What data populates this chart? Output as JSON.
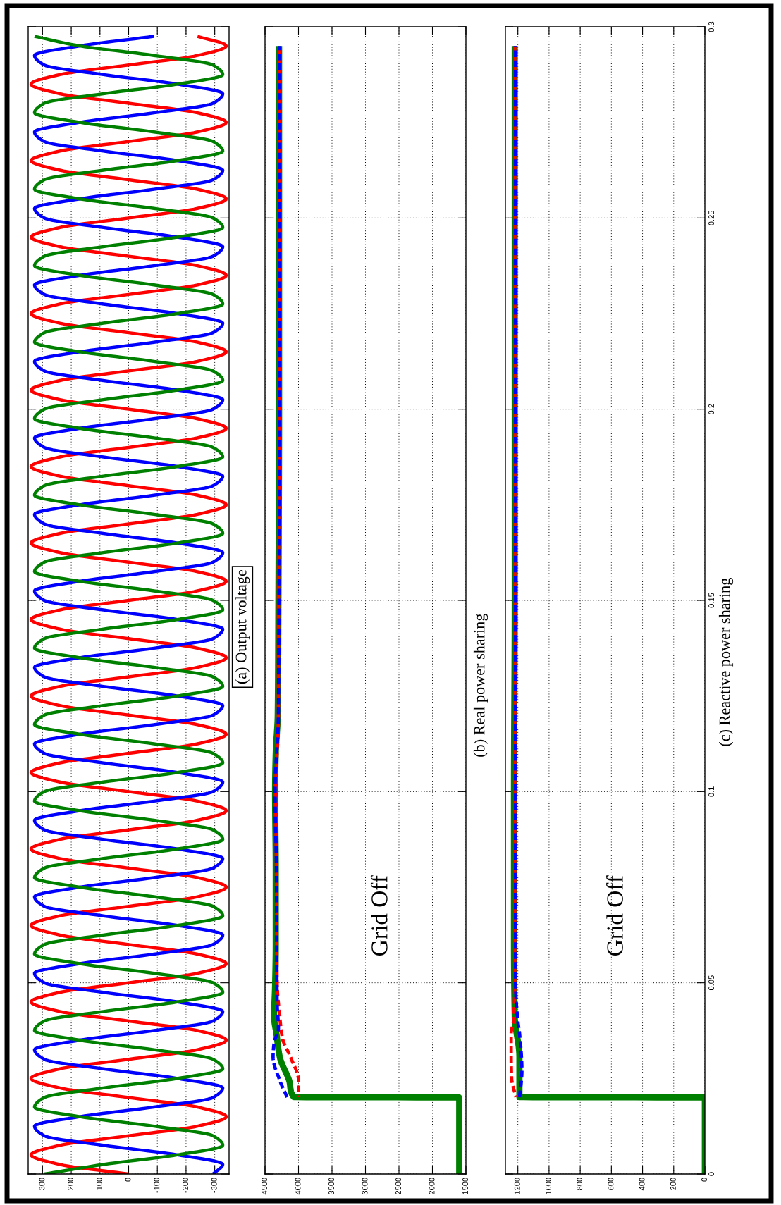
{
  "chart_data": [
    {
      "type": "line",
      "title": "(a) Output voltage",
      "xlim": [
        350,
        -350
      ],
      "xticks": [
        300,
        200,
        100,
        0,
        -100,
        -200,
        -300
      ],
      "ylim": [
        0,
        0.3
      ],
      "yticks": [
        0,
        0.05,
        0.1,
        0.15,
        0.2,
        0.25,
        0.3
      ],
      "grid": true,
      "tick_labels": "x",
      "series": [
        {
          "color": "#ff0000",
          "line_style": "solid",
          "x": [
            0,
            240,
            340,
            240,
            0,
            -240,
            -340,
            -240,
            0,
            240,
            340,
            240,
            0,
            -240,
            -340,
            -240,
            0,
            240,
            340,
            240,
            0,
            -240,
            -340,
            -240,
            0,
            240,
            340,
            240,
            0,
            -240,
            -340,
            -240,
            0,
            240,
            340,
            240,
            0,
            -240,
            -340,
            -240,
            0,
            240,
            340,
            240,
            0,
            -240,
            -340,
            -240,
            0,
            240,
            340,
            240,
            0,
            -240,
            -340,
            -240,
            0,
            240,
            340,
            240,
            0,
            -240,
            -340,
            -240,
            0,
            240,
            340,
            240,
            0,
            -240,
            -340,
            -240,
            0,
            240,
            340,
            240,
            0,
            -240,
            -340,
            -240,
            0,
            240,
            340,
            240,
            0,
            -240,
            -340,
            -240,
            0,
            240,
            340,
            240,
            0,
            -240,
            -340,
            -240,
            0,
            240,
            340,
            240,
            0,
            -240,
            -340,
            -240,
            0,
            240,
            340,
            240,
            0,
            -240,
            -340,
            -240,
            0,
            240,
            340,
            240,
            0,
            -240,
            -340,
            -240
          ],
          "values": [
            0,
            0.0025,
            0.005,
            0.0075,
            0.01,
            0.0125,
            0.015,
            0.0175,
            0.02,
            0.0225,
            0.025,
            0.0275,
            0.03,
            0.0325,
            0.035,
            0.0375,
            0.04,
            0.0425,
            0.045,
            0.0475,
            0.05,
            0.0525,
            0.055,
            0.0575,
            0.06,
            0.0625,
            0.065,
            0.0675,
            0.07,
            0.0725,
            0.075,
            0.0775,
            0.08,
            0.0825,
            0.085,
            0.0875,
            0.09,
            0.0925,
            0.095,
            0.0975,
            0.1,
            0.1025,
            0.105,
            0.1075,
            0.11,
            0.1125,
            0.115,
            0.1175,
            0.12,
            0.1225,
            0.125,
            0.1275,
            0.13,
            0.1325,
            0.135,
            0.1375,
            0.14,
            0.1425,
            0.145,
            0.1475,
            0.15,
            0.1525,
            0.155,
            0.1575,
            0.16,
            0.1625,
            0.165,
            0.1675,
            0.17,
            0.1725,
            0.175,
            0.1775,
            0.18,
            0.1825,
            0.185,
            0.1875,
            0.19,
            0.1925,
            0.195,
            0.1975,
            0.2,
            0.2025,
            0.205,
            0.2075,
            0.21,
            0.2125,
            0.215,
            0.2175,
            0.22,
            0.2225,
            0.225,
            0.2275,
            0.23,
            0.2325,
            0.235,
            0.2375,
            0.24,
            0.2425,
            0.245,
            0.2475,
            0.25,
            0.2525,
            0.255,
            0.2575,
            0.26,
            0.2625,
            0.265,
            0.2675,
            0.27,
            0.2725,
            0.275,
            0.2775,
            0.28,
            0.2825,
            0.285,
            0.2875,
            0.29,
            0.2925,
            0.295,
            0.2975
          ]
        },
        {
          "color": "#0000ff",
          "line_style": "solid",
          "x": [
            -294,
            -328,
            -170,
            88,
            294,
            328,
            170,
            -88,
            -294,
            -328,
            -170,
            88,
            294,
            328,
            170,
            -88,
            -294,
            -328,
            -170,
            88,
            294,
            328,
            170,
            -88,
            -294,
            -328,
            -170,
            88,
            294,
            328,
            170,
            -88,
            -294,
            -328,
            -170,
            88,
            294,
            328,
            170,
            -88,
            -294,
            -328,
            -170,
            88,
            294,
            328,
            170,
            -88,
            -294,
            -328,
            -170,
            88,
            294,
            328,
            170,
            -88,
            -294,
            -328,
            -170,
            88,
            294,
            328,
            170,
            -88,
            -294,
            -328,
            -170,
            88,
            294,
            328,
            170,
            -88,
            -294,
            -328,
            -170,
            88,
            294,
            328,
            170,
            -88,
            -294,
            -328,
            -170,
            88,
            294,
            328,
            170,
            -88,
            -294,
            -328,
            -170,
            88,
            294,
            328,
            170,
            -88,
            -294,
            -328,
            -170,
            88,
            294,
            328,
            170,
            -88,
            -294,
            -328,
            -170,
            88,
            294,
            328,
            170,
            -88,
            -294,
            -328,
            -170,
            88,
            294,
            328,
            170,
            -88
          ],
          "values": [
            0,
            0.0025,
            0.005,
            0.0075,
            0.01,
            0.0125,
            0.015,
            0.0175,
            0.02,
            0.0225,
            0.025,
            0.0275,
            0.03,
            0.0325,
            0.035,
            0.0375,
            0.04,
            0.0425,
            0.045,
            0.0475,
            0.05,
            0.0525,
            0.055,
            0.0575,
            0.06,
            0.0625,
            0.065,
            0.0675,
            0.07,
            0.0725,
            0.075,
            0.0775,
            0.08,
            0.0825,
            0.085,
            0.0875,
            0.09,
            0.0925,
            0.095,
            0.0975,
            0.1,
            0.1025,
            0.105,
            0.1075,
            0.11,
            0.1125,
            0.115,
            0.1175,
            0.12,
            0.1225,
            0.125,
            0.1275,
            0.13,
            0.1325,
            0.135,
            0.1375,
            0.14,
            0.1425,
            0.145,
            0.1475,
            0.15,
            0.1525,
            0.155,
            0.1575,
            0.16,
            0.1625,
            0.165,
            0.1675,
            0.17,
            0.1725,
            0.175,
            0.1775,
            0.18,
            0.1825,
            0.185,
            0.1875,
            0.19,
            0.1925,
            0.195,
            0.1975,
            0.2,
            0.2025,
            0.205,
            0.2075,
            0.21,
            0.2125,
            0.215,
            0.2175,
            0.22,
            0.2225,
            0.225,
            0.2275,
            0.23,
            0.2325,
            0.235,
            0.2375,
            0.24,
            0.2425,
            0.245,
            0.2475,
            0.25,
            0.2525,
            0.255,
            0.2575,
            0.26,
            0.2625,
            0.265,
            0.2675,
            0.27,
            0.2725,
            0.275,
            0.2775,
            0.28,
            0.2825,
            0.285,
            0.2875,
            0.29,
            0.2925,
            0.295,
            0.2975
          ]
        },
        {
          "color": "#008000",
          "line_style": "solid",
          "x": [
            294,
            88,
            -170,
            -328,
            -294,
            -88,
            170,
            328,
            294,
            88,
            -170,
            -328,
            -294,
            -88,
            170,
            328,
            294,
            88,
            -170,
            -328,
            -294,
            -88,
            170,
            328,
            294,
            88,
            -170,
            -328,
            -294,
            -88,
            170,
            328,
            294,
            88,
            -170,
            -328,
            -294,
            -88,
            170,
            328,
            294,
            88,
            -170,
            -328,
            -294,
            -88,
            170,
            328,
            294,
            88,
            -170,
            -328,
            -294,
            -88,
            170,
            328,
            294,
            88,
            -170,
            -328,
            -294,
            -88,
            170,
            328,
            294,
            88,
            -170,
            -328,
            -294,
            -88,
            170,
            328,
            294,
            88,
            -170,
            -328,
            -294,
            -88,
            170,
            328,
            294,
            88,
            -170,
            -328,
            -294,
            -88,
            170,
            328,
            294,
            88,
            -170,
            -328,
            -294,
            -88,
            170,
            328,
            294,
            88,
            -170,
            -328,
            -294,
            -88,
            170,
            328,
            294,
            88,
            -170,
            -328,
            -294,
            -88,
            170,
            328,
            294,
            88,
            -170,
            -328,
            -294,
            -88,
            170,
            328
          ],
          "values": [
            0,
            0.0025,
            0.005,
            0.0075,
            0.01,
            0.0125,
            0.015,
            0.0175,
            0.02,
            0.0225,
            0.025,
            0.0275,
            0.03,
            0.0325,
            0.035,
            0.0375,
            0.04,
            0.0425,
            0.045,
            0.0475,
            0.05,
            0.0525,
            0.055,
            0.0575,
            0.06,
            0.0625,
            0.065,
            0.0675,
            0.07,
            0.0725,
            0.075,
            0.0775,
            0.08,
            0.0825,
            0.085,
            0.0875,
            0.09,
            0.0925,
            0.095,
            0.0975,
            0.1,
            0.1025,
            0.105,
            0.1075,
            0.11,
            0.1125,
            0.115,
            0.1175,
            0.12,
            0.1225,
            0.125,
            0.1275,
            0.13,
            0.1325,
            0.135,
            0.1375,
            0.14,
            0.1425,
            0.145,
            0.1475,
            0.15,
            0.1525,
            0.155,
            0.1575,
            0.16,
            0.1625,
            0.165,
            0.1675,
            0.17,
            0.1725,
            0.175,
            0.1775,
            0.18,
            0.1825,
            0.185,
            0.1875,
            0.19,
            0.1925,
            0.195,
            0.1975,
            0.2,
            0.2025,
            0.205,
            0.2075,
            0.21,
            0.2125,
            0.215,
            0.2175,
            0.22,
            0.2225,
            0.225,
            0.2275,
            0.23,
            0.2325,
            0.235,
            0.2375,
            0.24,
            0.2425,
            0.245,
            0.2475,
            0.25,
            0.2525,
            0.255,
            0.2575,
            0.26,
            0.2625,
            0.265,
            0.2675,
            0.27,
            0.2725,
            0.275,
            0.2775,
            0.28,
            0.2825,
            0.285,
            0.2875,
            0.29,
            0.2925,
            0.295,
            0.2975
          ]
        }
      ]
    },
    {
      "type": "line",
      "title": "(b) Real power sharing",
      "xlim": [
        4500,
        1500
      ],
      "xticks": [
        4500,
        4000,
        3500,
        3000,
        2500,
        2000,
        1500
      ],
      "ylim": [
        0,
        0.3
      ],
      "yticks": [
        0,
        0.05,
        0.1,
        0.15,
        0.2,
        0.25,
        0.3
      ],
      "grid": true,
      "tick_labels": "x",
      "annotations": [
        "Grid Off"
      ],
      "series": [
        {
          "color": "#008000",
          "line_style": "solid",
          "x": [
            1600,
            1600,
            4070,
            4140,
            4280,
            4330,
            4365,
            4350,
            4340,
            4340,
            4350,
            4340,
            4310,
            4300,
            4290,
            4290,
            4290
          ],
          "values": [
            0,
            0.02,
            0.0201,
            0.0245,
            0.0306,
            0.0367,
            0.0411,
            0.049,
            0.06,
            0.08,
            0.1,
            0.11,
            0.12,
            0.15,
            0.2,
            0.25,
            0.295
          ]
        },
        {
          "color": "#ff0000",
          "line_style": "dashed",
          "x": [
            4000,
            4000,
            4120,
            4240,
            4280,
            4320,
            4330,
            4340,
            4300,
            4300,
            4290,
            4290,
            4290
          ],
          "values": [
            0.0201,
            0.0245,
            0.0306,
            0.0355,
            0.0411,
            0.05,
            0.08,
            0.1,
            0.12,
            0.15,
            0.2,
            0.25,
            0.295
          ]
        },
        {
          "color": "#0000ff",
          "line_style": "dashed",
          "x": [
            4170,
            4280,
            4380,
            4365,
            4300,
            4320,
            4330,
            4350,
            4300,
            4290,
            4280,
            4280,
            4280
          ],
          "values": [
            0.0201,
            0.0245,
            0.0306,
            0.0343,
            0.038,
            0.045,
            0.08,
            0.1,
            0.12,
            0.15,
            0.2,
            0.25,
            0.295
          ]
        }
      ]
    },
    {
      "type": "line",
      "title": "(c) Reactive power sharing",
      "xlim": [
        1280,
        0
      ],
      "xticks": [
        1200,
        1000,
        800,
        600,
        400,
        200,
        0
      ],
      "ylim": [
        0,
        0.3
      ],
      "yticks": [
        0,
        0.05,
        0.1,
        0.15,
        0.2,
        0.25,
        0.3
      ],
      "grid": true,
      "annotations": [
        "Grid Off"
      ],
      "series": [
        {
          "color": "#008000",
          "line_style": "solid",
          "x": [
            0,
            0,
            1190,
            1190,
            1220,
            1225,
            1225,
            1220,
            1220,
            1220,
            1220
          ],
          "values": [
            0,
            0.02,
            0.0201,
            0.0306,
            0.0411,
            0.06,
            0.1,
            0.15,
            0.2,
            0.25,
            0.295
          ]
        },
        {
          "color": "#ff0000",
          "line_style": "dashed",
          "x": [
            1212,
            1240,
            1243,
            1243,
            1228,
            1220,
            1220,
            1220,
            1220,
            1220,
            1220
          ],
          "values": [
            0.0201,
            0.025,
            0.0306,
            0.0367,
            0.04,
            0.05,
            0.1,
            0.15,
            0.2,
            0.25,
            0.295
          ]
        },
        {
          "color": "#0000ff",
          "line_style": "dashed",
          "x": [
            1189,
            1174,
            1189,
            1200,
            1215,
            1215,
            1215,
            1215,
            1215,
            1215
          ],
          "values": [
            0.0201,
            0.027,
            0.0367,
            0.04,
            0.05,
            0.1,
            0.15,
            0.2,
            0.25,
            0.295
          ]
        }
      ]
    }
  ]
}
